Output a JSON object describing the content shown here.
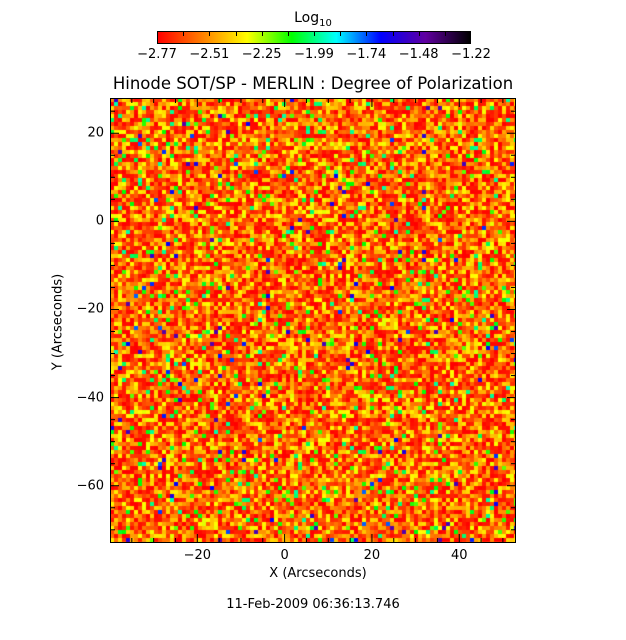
{
  "chart_data": {
    "type": "heatmap",
    "title": "Hinode SOT/SP - MERLIN : Degree of Polarization",
    "xlabel": "X (Arcseconds)",
    "ylabel": "Y (Arcseconds)",
    "xlim": [
      -40,
      53
    ],
    "ylim": [
      -73,
      28
    ],
    "xticks": [
      "-20",
      "0",
      "20",
      "40"
    ],
    "xtick_values": [
      -20,
      0,
      20,
      40
    ],
    "yticks": [
      "20",
      "0",
      "-20",
      "-40",
      "-60"
    ],
    "ytick_values": [
      20,
      0,
      -20,
      -40,
      -60
    ],
    "colorbar": {
      "label_base": "Log",
      "label_sub": "10",
      "ticks": [
        "-2.77",
        "-2.51",
        "-2.25",
        "-1.99",
        "-1.74",
        "-1.48",
        "-1.22"
      ],
      "range": [
        -2.77,
        -1.22
      ],
      "colormap": [
        "#ff0000",
        "#ff8000",
        "#ffff00",
        "#00ff00",
        "#00ffff",
        "#0000ff",
        "#6000a0",
        "#000000"
      ]
    },
    "dominant_value_range": [
      -2.77,
      -2.3
    ],
    "timestamp": "11-Feb-2009 06:36:13.746"
  }
}
